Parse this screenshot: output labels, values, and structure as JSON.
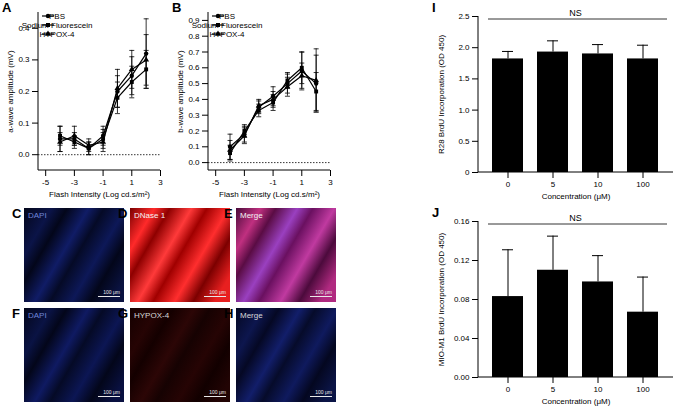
{
  "chart_data": [
    {
      "type": "line",
      "label": "A",
      "xlabel": "Flash Intensity (Log cd.s/m²)",
      "ylabel": "a-wave amplitude (mV)",
      "x": [
        -4,
        -3,
        -2,
        -1,
        0,
        1,
        2
      ],
      "series": [
        {
          "name": "PBS",
          "color": "#000000",
          "marker": "circle",
          "values": [
            0.05,
            0.05,
            0.02,
            0.06,
            0.2,
            0.25,
            0.32
          ],
          "errors": [
            0.04,
            0.02,
            0.02,
            0.03,
            0.05,
            0.06,
            0.11
          ]
        },
        {
          "name": "Sodium Fluorescein",
          "color": "#000000",
          "marker": "square",
          "values": [
            0.06,
            0.04,
            0.02,
            0.05,
            0.18,
            0.23,
            0.27
          ],
          "errors": [
            0.03,
            0.02,
            0.02,
            0.03,
            0.05,
            0.05,
            0.06
          ]
        },
        {
          "name": "HYPOX-4",
          "color": "#000000",
          "marker": "triangle",
          "values": [
            0.04,
            0.06,
            0.03,
            0.04,
            0.21,
            0.27,
            0.3
          ],
          "errors": [
            0.03,
            0.03,
            0.02,
            0.03,
            0.06,
            0.06,
            0.08
          ]
        }
      ],
      "xlim": [
        -5.5,
        3
      ],
      "xticks": [
        -5,
        -3,
        -1,
        1,
        3
      ],
      "ylim": [
        -0.05,
        0.45
      ],
      "yticks": [
        {
          "value": 0,
          "label": "0.0"
        },
        0.1,
        0.2,
        0.3,
        0.4
      ],
      "hline": 0,
      "legend": "top-left",
      "grid": false
    },
    {
      "type": "line",
      "label": "B",
      "xlabel": "Flash Intensity (Log cd.s/m²)",
      "ylabel": "b-wave amplitude (mV)",
      "x": [
        -4,
        -3,
        -2,
        -1,
        0,
        1,
        2
      ],
      "series": [
        {
          "name": "PBS",
          "color": "#000000",
          "marker": "circle",
          "values": [
            0.1,
            0.18,
            0.35,
            0.42,
            0.5,
            0.58,
            0.5
          ],
          "errors": [
            0.08,
            0.05,
            0.04,
            0.06,
            0.06,
            0.12,
            0.18
          ]
        },
        {
          "name": "Sodium Fluorescein",
          "color": "#000000",
          "marker": "square",
          "values": [
            0.06,
            0.2,
            0.33,
            0.38,
            0.52,
            0.6,
            0.45
          ],
          "errors": [
            0.05,
            0.04,
            0.04,
            0.05,
            0.05,
            0.1,
            0.12
          ]
        },
        {
          "name": "HYPOX-4",
          "color": "#000000",
          "marker": "triangle",
          "values": [
            0.08,
            0.17,
            0.36,
            0.4,
            0.48,
            0.55,
            0.52
          ],
          "errors": [
            0.06,
            0.05,
            0.04,
            0.05,
            0.06,
            0.08,
            0.2
          ]
        }
      ],
      "xlim": [
        -5.5,
        3
      ],
      "xticks": [
        -5,
        -3,
        -1,
        1,
        3
      ],
      "ylim": [
        -0.05,
        0.95
      ],
      "yticks": [
        {
          "value": 0,
          "label": "0.0"
        },
        0.1,
        0.2,
        0.3,
        0.4,
        0.5,
        0.6,
        0.7,
        0.8,
        0.9
      ],
      "hline": 0,
      "legend": "top-left",
      "grid": false
    },
    {
      "type": "bar",
      "label": "I",
      "xlabel": "Concentration (μM)",
      "ylabel": "R28 BrdU Incorporation (OD 450)",
      "categories": [
        "0",
        "5",
        "10",
        "100"
      ],
      "values": [
        1.82,
        1.93,
        1.9,
        1.82
      ],
      "errors": [
        0.12,
        0.18,
        0.15,
        0.22
      ],
      "color": "#000000",
      "ylim": [
        0,
        2.5
      ],
      "yticks": [
        0,
        0.5,
        {
          "value": 1,
          "label": "1.0"
        },
        1.5,
        {
          "value": 2,
          "label": "2.0"
        },
        2.5
      ],
      "annotation": "NS",
      "grid": false
    },
    {
      "type": "bar",
      "label": "J",
      "xlabel": "Concentration (μM)",
      "ylabel": "MIO-M1 BrdU Incorporation (OD 450)",
      "categories": [
        "0",
        "5",
        "10",
        "100"
      ],
      "values": [
        0.083,
        0.11,
        0.098,
        0.067
      ],
      "errors": [
        0.048,
        0.035,
        0.027,
        0.036
      ],
      "color": "#000000",
      "ylim": [
        0,
        0.16
      ],
      "yticks": [
        {
          "value": 0,
          "label": "0.00"
        },
        0.04,
        0.08,
        0.12,
        0.16
      ],
      "annotation": "NS",
      "grid": false
    }
  ],
  "images": [
    {
      "label": "C",
      "text": "DAPI"
    },
    {
      "label": "D",
      "text": "DNase 1"
    },
    {
      "label": "E",
      "text": "Merge"
    },
    {
      "label": "F",
      "text": "DAPI"
    },
    {
      "label": "G",
      "text": "HYPOX-4"
    },
    {
      "label": "H",
      "text": "Merge"
    }
  ],
  "scale_bar": "100 μm"
}
